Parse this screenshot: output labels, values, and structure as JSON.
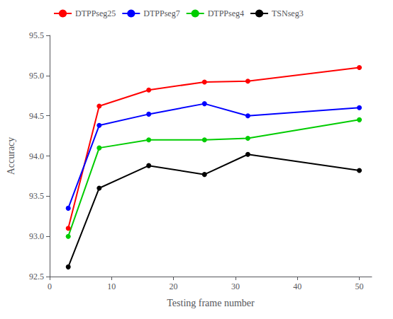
{
  "chart_data": {
    "type": "line",
    "xlabel": "Testing frame number",
    "ylabel": "Accuracy",
    "x": [
      3,
      8,
      16,
      25,
      32,
      50
    ],
    "series": [
      {
        "name": "DTPPseg25",
        "color": "#ff0000",
        "marker": "circle",
        "values": [
          93.1,
          94.62,
          94.82,
          94.92,
          94.93,
          95.1
        ]
      },
      {
        "name": "DTPPseg7",
        "color": "#0000ff",
        "marker": "circle",
        "values": [
          93.35,
          94.38,
          94.52,
          94.65,
          94.5,
          94.6
        ]
      },
      {
        "name": "DTPPseg4",
        "color": "#00cc00",
        "marker": "circle",
        "values": [
          93.0,
          94.1,
          94.2,
          94.2,
          94.22,
          94.45
        ]
      },
      {
        "name": "TSNseg3",
        "color": "#000000",
        "marker": "circle",
        "values": [
          92.62,
          93.6,
          93.88,
          93.77,
          94.02,
          93.82
        ]
      }
    ],
    "xlim": [
      0,
      52
    ],
    "ylim": [
      92.5,
      95.5
    ],
    "xticks": [
      0,
      10,
      20,
      30,
      40,
      50
    ],
    "yticks": [
      92.5,
      {
        "value": 93,
        "label": "93.0"
      },
      93.5,
      {
        "value": 94,
        "label": "94.0"
      },
      94.5,
      {
        "value": 95,
        "label": "95.0"
      },
      95.5
    ],
    "legend": "upper left",
    "grid": false
  }
}
